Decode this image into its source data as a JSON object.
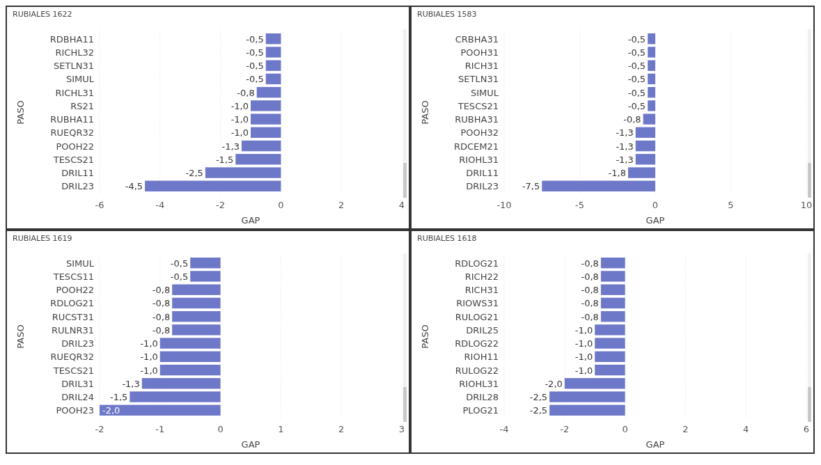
{
  "chart_data": [
    {
      "type": "bar",
      "orientation": "horizontal",
      "title": "RUBIALES 1622",
      "xlabel": "GAP",
      "ylabel": "PASO",
      "categories": [
        "RDBHA11",
        "RICHL32",
        "SETLN31",
        "SIMUL",
        "RICHL31",
        "RS21",
        "RUBHA11",
        "RUEQR32",
        "POOH22",
        "TESCS21",
        "DRIL11",
        "DRIL23"
      ],
      "values": [
        -0.5,
        -0.5,
        -0.5,
        -0.5,
        -0.8,
        -1.0,
        -1.0,
        -1.0,
        -1.3,
        -1.5,
        -2.5,
        -4.5
      ],
      "value_labels": [
        "-0,5",
        "-0,5",
        "-0,5",
        "-0,5",
        "-0,8",
        "-1,0",
        "-1,0",
        "-1,0",
        "-1,3",
        "-1,5",
        "-2,5",
        "-4,5"
      ],
      "color": "#6e78c8",
      "xlim": [
        -6,
        4
      ],
      "xticks": [
        -6,
        -4,
        -2,
        0,
        2,
        4
      ],
      "grid": "x"
    },
    {
      "type": "bar",
      "orientation": "horizontal",
      "title": "RUBIALES 1583",
      "xlabel": "GAP",
      "ylabel": "PASO",
      "categories": [
        "CRBHA31",
        "POOH31",
        "RICH31",
        "SETLN31",
        "SIMUL",
        "TESCS21",
        "RUBHA31",
        "POOH32",
        "RDCEM21",
        "RIOHL31",
        "DRIL11",
        "DRIL23"
      ],
      "values": [
        -0.5,
        -0.5,
        -0.5,
        -0.5,
        -0.5,
        -0.5,
        -0.8,
        -1.3,
        -1.3,
        -1.3,
        -1.8,
        -7.5
      ],
      "value_labels": [
        "-0,5",
        "-0,5",
        "-0,5",
        "-0,5",
        "-0,5",
        "-0,5",
        "-0,8",
        "-1,3",
        "-1,3",
        "-1,3",
        "-1,8",
        "-7,5"
      ],
      "color": "#6e78c8",
      "xlim": [
        -10,
        10
      ],
      "xticks": [
        -10,
        -5,
        0,
        5,
        10
      ],
      "grid": "x"
    },
    {
      "type": "bar",
      "orientation": "horizontal",
      "title": "RUBIALES 1619",
      "xlabel": "GAP",
      "ylabel": "PASO",
      "categories": [
        "SIMUL",
        "TESCS11",
        "POOH22",
        "RDLOG21",
        "RUCST31",
        "RULNR31",
        "DRIL23",
        "RUEQR32",
        "TESCS21",
        "DRIL31",
        "DRIL24",
        "POOH23"
      ],
      "values": [
        -0.5,
        -0.5,
        -0.8,
        -0.8,
        -0.8,
        -0.8,
        -1.0,
        -1.0,
        -1.0,
        -1.3,
        -1.5,
        -2.0
      ],
      "value_labels": [
        "-0,5",
        "-0,5",
        "-0,8",
        "-0,8",
        "-0,8",
        "-0,8",
        "-1,0",
        "-1,0",
        "-1,0",
        "-1,3",
        "-1,5",
        "-2,0"
      ],
      "color": "#6e78c8",
      "xlim": [
        -2,
        3
      ],
      "xticks": [
        -2,
        -1,
        0,
        1,
        2,
        3
      ],
      "grid": "x"
    },
    {
      "type": "bar",
      "orientation": "horizontal",
      "title": "RUBIALES 1618",
      "xlabel": "GAP",
      "ylabel": "PASO",
      "categories": [
        "RDLOG21",
        "RICH22",
        "RICH31",
        "RIOWS31",
        "RULOG21",
        "DRIL25",
        "RDLOG22",
        "RIOH11",
        "RULOG22",
        "RIOHL31",
        "DRIL28",
        "PLOG21"
      ],
      "values": [
        -0.8,
        -0.8,
        -0.8,
        -0.8,
        -0.8,
        -1.0,
        -1.0,
        -1.0,
        -1.0,
        -2.0,
        -2.5,
        -2.5
      ],
      "value_labels": [
        "-0,8",
        "-0,8",
        "-0,8",
        "-0,8",
        "-0,8",
        "-1,0",
        "-1,0",
        "-1,0",
        "-1,0",
        "-2,0",
        "-2,5",
        "-2,5"
      ],
      "color": "#6e78c8",
      "xlim": [
        -4,
        6
      ],
      "xticks": [
        -4,
        -2,
        0,
        2,
        4,
        6
      ],
      "grid": "x"
    }
  ]
}
